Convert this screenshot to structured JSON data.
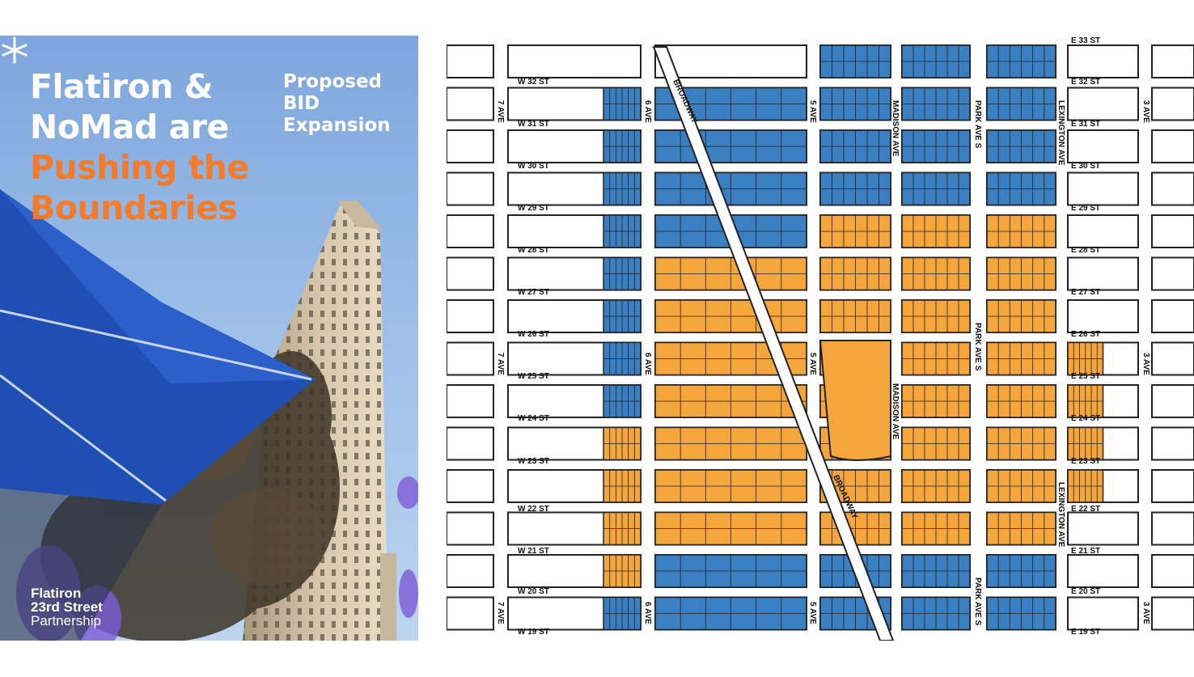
{
  "poster": {
    "title_line1": "Flatiron &",
    "title_line2": "NoMad are",
    "title_line3": "Pushing the",
    "title_line4": "Boundaries",
    "subtitle_line1": "Proposed",
    "subtitle_line2": "BID",
    "subtitle_line3": "Expansion",
    "logo_line1": "Flatiron",
    "logo_line2": "23rd Street",
    "logo_line3": "Partnership",
    "colors": {
      "orange": "#f37b2a",
      "sky": "#8fb3e3",
      "umbrella": "#1f4fb3",
      "white": "#ffffff"
    }
  },
  "map": {
    "west_streets": [
      "W 32 ST",
      "W 31 ST",
      "W 30 ST",
      "W 29 ST",
      "W 28 ST",
      "W 27 ST",
      "W 26 ST",
      "W 25 ST",
      "W 24 ST",
      "W 23 ST",
      "W 22 ST",
      "W 21 ST",
      "W 20 ST",
      "W 19 ST"
    ],
    "east_streets": [
      "E 33 ST",
      "E 32 ST",
      "E 31 ST",
      "E 30 ST",
      "E 29 ST",
      "E 28 ST",
      "E 27 ST",
      "E 26 ST",
      "E 25 ST",
      "E 24 ST",
      "E 23 ST",
      "E 22 ST",
      "E 21 ST",
      "E 20 ST",
      "E 19 ST"
    ],
    "avenues": {
      "seventh": "7 AVE",
      "sixth": "6 AVE",
      "fifth": "5 AVE",
      "madison": "MADISON AVE",
      "park": "PARK AVE S",
      "lexington": "LEXINGTON AVE",
      "third": "3 AVE",
      "broadway": "BROADWAY"
    },
    "legend_colors": {
      "existing_bid": "#3a7fc1",
      "proposed_expansion": "#f4a53c"
    }
  }
}
